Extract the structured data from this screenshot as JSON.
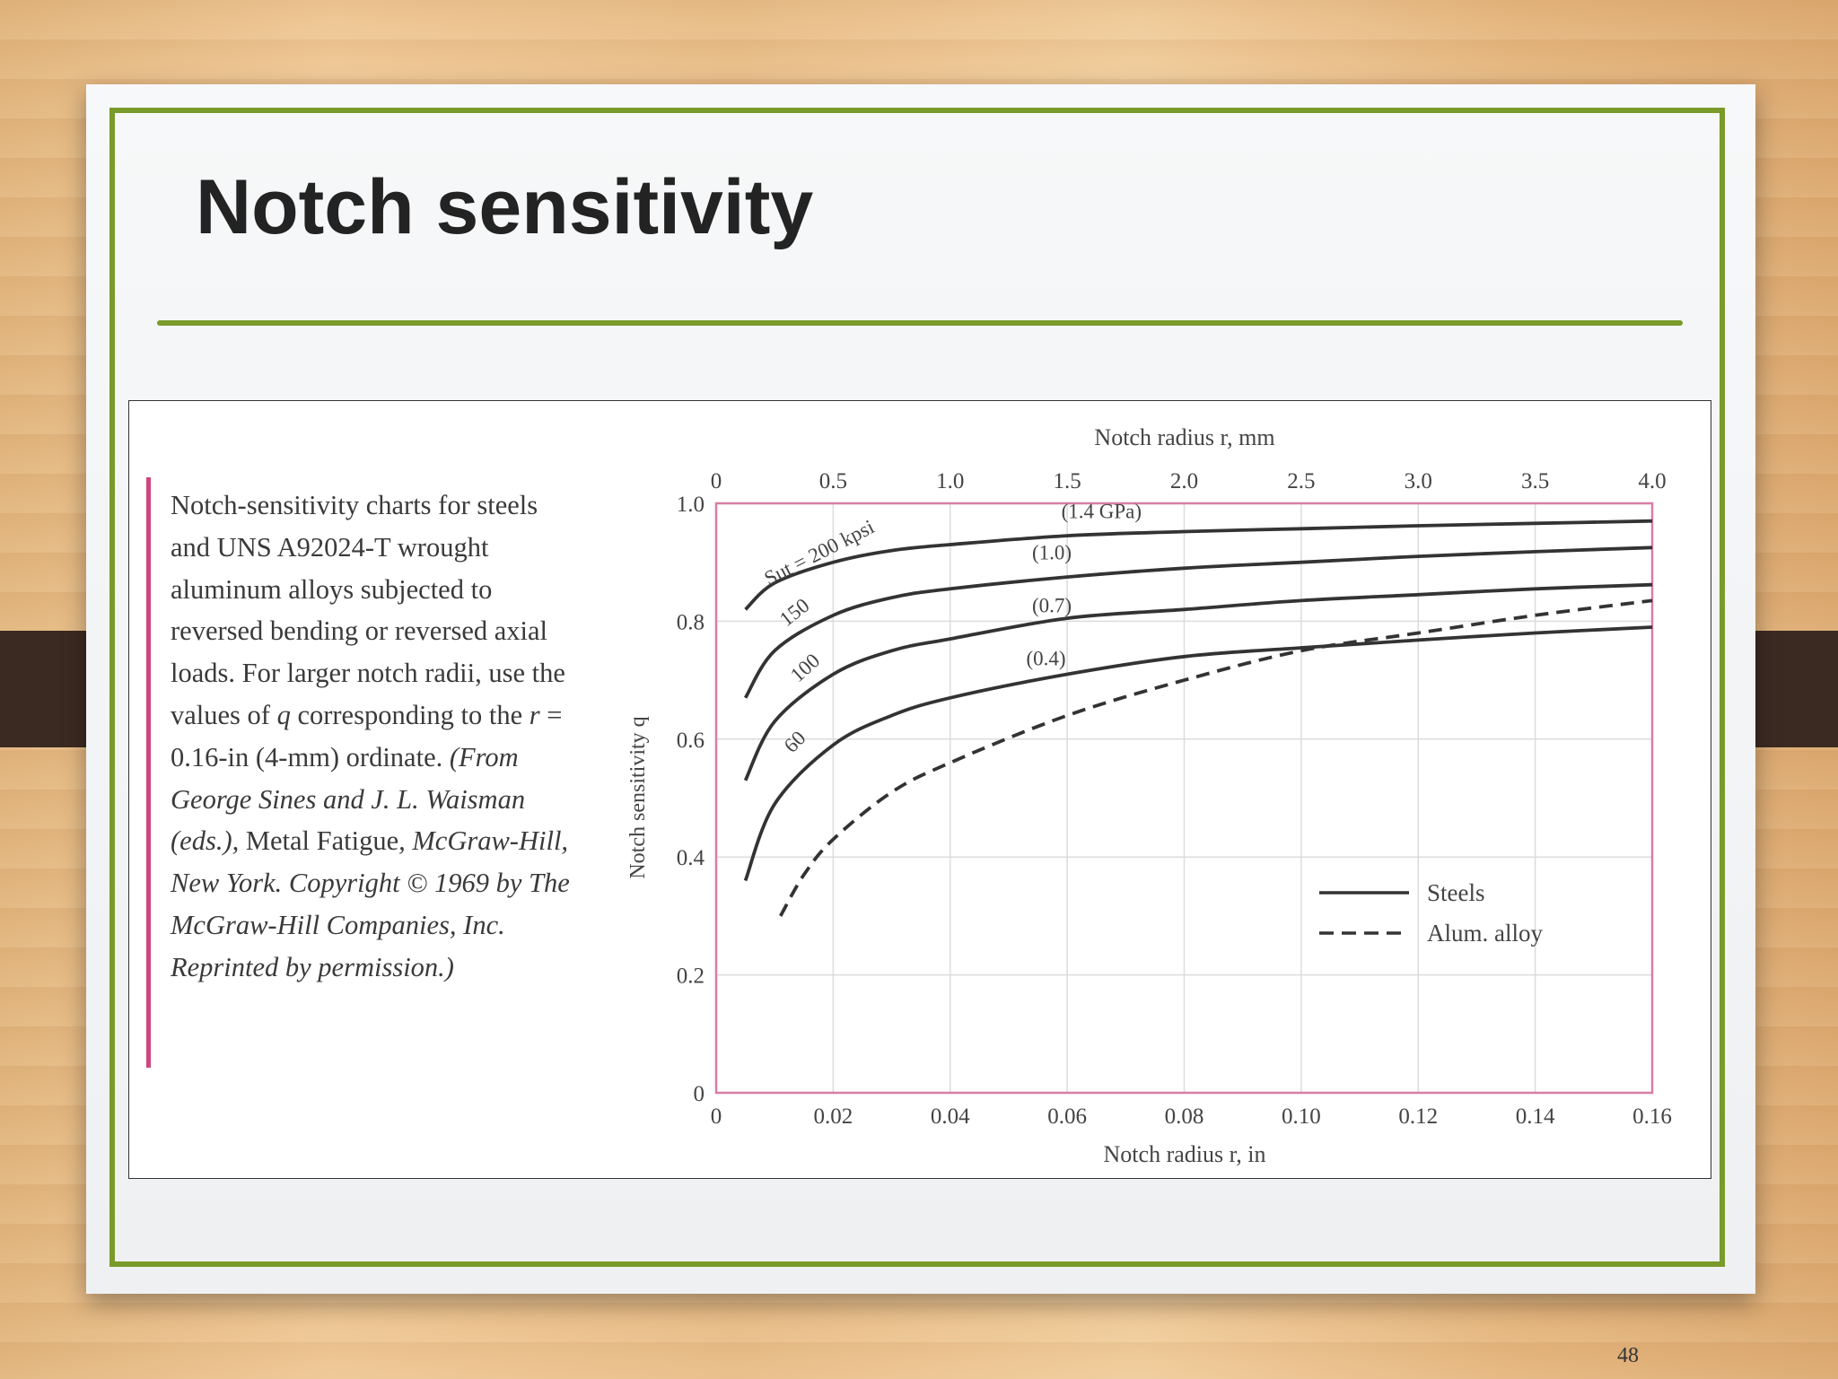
{
  "slide": {
    "title": "Notch sensitivity",
    "page_number": "48"
  },
  "caption": {
    "p1": "Notch-sensitivity charts for steels and UNS A92024-T wrought aluminum alloys subjected to reversed bending or reversed axial loads. For larger notch radii, use the values of ",
    "q": "q",
    "p2": " corresponding to the ",
    "r": "r",
    "p3": " = 0.16-in (4-mm) ordinate. ",
    "p4": "(From George Sines and J. L. Waisman (eds.), ",
    "p5": "Metal Fatigue",
    "p6": ", McGraw-Hill, New York. Copyright © 1969 by The McGraw-Hill Companies, Inc. Reprinted by permission.)"
  },
  "chart_data": {
    "type": "line",
    "xlabel": "Notch radius r, in",
    "ylabel": "Notch sensitivity q",
    "top_xlabel": "Notch radius r, mm",
    "xlim": [
      0,
      0.16
    ],
    "ylim": [
      0,
      1.0
    ],
    "x_ticks": [
      "0",
      "0.02",
      "0.04",
      "0.06",
      "0.08",
      "0.10",
      "0.12",
      "0.14",
      "0.16"
    ],
    "y_ticks": [
      "0",
      "0.2",
      "0.4",
      "0.6",
      "0.8",
      "1.0"
    ],
    "top_x_ticks": [
      "0",
      "0.5",
      "1.0",
      "1.5",
      "2.0",
      "2.5",
      "3.0",
      "3.5",
      "4.0"
    ],
    "grid": true,
    "legend": {
      "position": "bottom-right",
      "entries": [
        {
          "label": "Steels",
          "style": "solid"
        },
        {
          "label": "Alum. alloy",
          "style": "dashed"
        }
      ]
    },
    "curve_labels": [
      {
        "text": "Sut = 200 kpsi",
        "x": 0.009,
        "y": 0.86
      },
      {
        "text": "(1.4 GPa)",
        "x": 0.059,
        "y": 0.975
      },
      {
        "text": "(1.0)",
        "x": 0.054,
        "y": 0.905
      },
      {
        "text": "150",
        "x": 0.012,
        "y": 0.79
      },
      {
        "text": "(0.7)",
        "x": 0.054,
        "y": 0.815
      },
      {
        "text": "100",
        "x": 0.014,
        "y": 0.695
      },
      {
        "text": "(0.4)",
        "x": 0.053,
        "y": 0.725
      },
      {
        "text": "60",
        "x": 0.013,
        "y": 0.575
      }
    ],
    "series": [
      {
        "style": "solid",
        "x": [
          0.005,
          0.01,
          0.02,
          0.03,
          0.04,
          0.06,
          0.08,
          0.1,
          0.12,
          0.14,
          0.16
        ],
        "y": [
          0.82,
          0.865,
          0.9,
          0.92,
          0.93,
          0.945,
          0.952,
          0.957,
          0.962,
          0.966,
          0.97
        ]
      },
      {
        "style": "solid",
        "x": [
          0.005,
          0.01,
          0.02,
          0.03,
          0.04,
          0.06,
          0.08,
          0.1,
          0.12,
          0.14,
          0.16
        ],
        "y": [
          0.67,
          0.75,
          0.81,
          0.84,
          0.855,
          0.875,
          0.89,
          0.9,
          0.91,
          0.918,
          0.925
        ]
      },
      {
        "style": "solid",
        "x": [
          0.005,
          0.01,
          0.02,
          0.03,
          0.04,
          0.06,
          0.08,
          0.1,
          0.12,
          0.14,
          0.16
        ],
        "y": [
          0.53,
          0.63,
          0.71,
          0.75,
          0.77,
          0.805,
          0.82,
          0.835,
          0.845,
          0.855,
          0.862
        ]
      },
      {
        "style": "solid",
        "x": [
          0.005,
          0.01,
          0.02,
          0.03,
          0.04,
          0.06,
          0.08,
          0.1,
          0.12,
          0.14,
          0.16
        ],
        "y": [
          0.36,
          0.49,
          0.59,
          0.64,
          0.67,
          0.71,
          0.74,
          0.755,
          0.768,
          0.78,
          0.79
        ]
      },
      {
        "style": "dashed",
        "x": [
          0.011,
          0.015,
          0.02,
          0.03,
          0.04,
          0.06,
          0.08,
          0.1,
          0.12,
          0.14,
          0.16
        ],
        "y": [
          0.3,
          0.37,
          0.43,
          0.51,
          0.56,
          0.64,
          0.7,
          0.75,
          0.78,
          0.81,
          0.835
        ]
      }
    ]
  }
}
